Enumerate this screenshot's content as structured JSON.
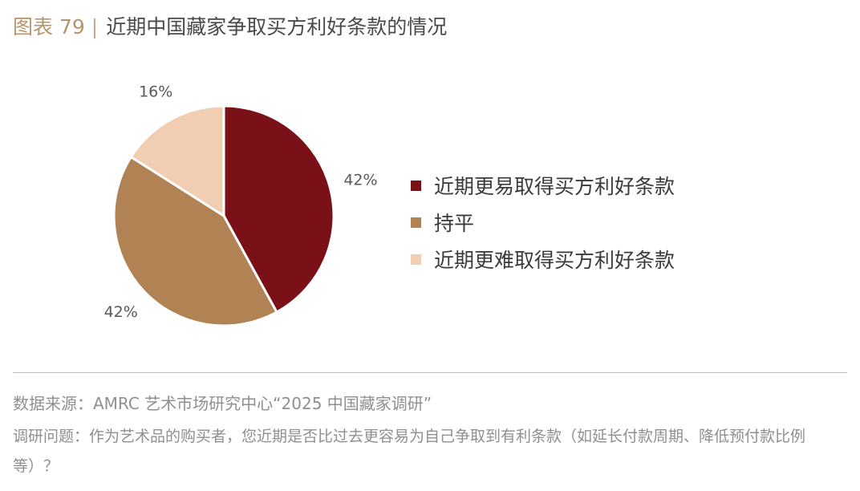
{
  "header": {
    "figure_label": "图表 79",
    "separator": "|",
    "title": "近期中国藏家争取买方利好条款的情况"
  },
  "chart_data": {
    "type": "pie",
    "categories": [
      "近期更易取得买方利好条款",
      "持平",
      "近期更难取得买方利好条款"
    ],
    "values": [
      42,
      42,
      16
    ],
    "value_labels": [
      "42%",
      "42%",
      "16%"
    ],
    "colors": [
      "#7B1118",
      "#B08254",
      "#F1CDB1"
    ],
    "start": "12 o'clock",
    "direction": "clockwise",
    "legend_position": "right"
  },
  "footer": {
    "source": "数据来源：AMRC 艺术市场研究中心“2025 中国藏家调研”",
    "question": "调研问题：作为艺术品的购买者，您近期是否比过去更容易为自己争取到有利条款（如延长付款周期、降低预付款比例等）？"
  }
}
